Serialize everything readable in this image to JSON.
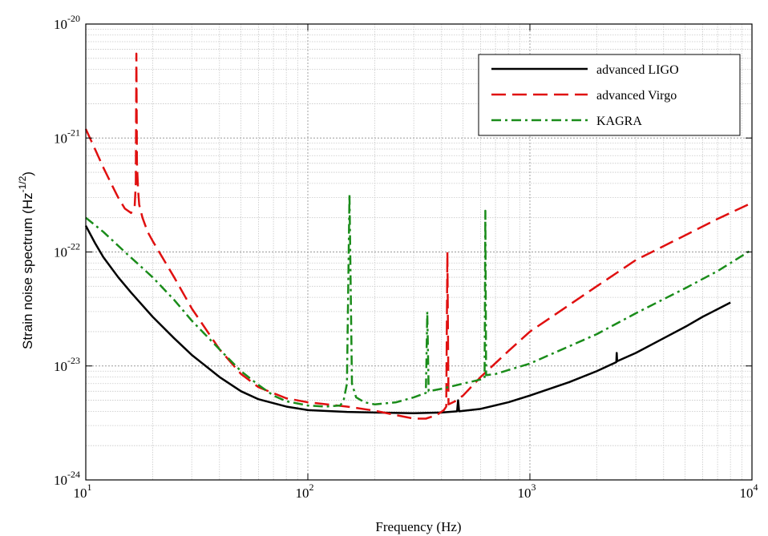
{
  "chart_data": {
    "type": "line",
    "title": "",
    "xlabel": "Frequency (Hz)",
    "ylabel": {
      "base": "Strain noise spectrum (Hz",
      "sup": "-1/2",
      "close": ")"
    },
    "xscale": "log",
    "yscale": "log",
    "xlim": [
      10,
      10000
    ],
    "ylim": [
      1e-24,
      1e-20
    ],
    "grid": true,
    "legend_position": "top-right",
    "x_ticks": [
      {
        "base": "10",
        "exp": "1",
        "value": 10
      },
      {
        "base": "10",
        "exp": "2",
        "value": 100
      },
      {
        "base": "10",
        "exp": "3",
        "value": 1000
      },
      {
        "base": "10",
        "exp": "4",
        "value": 10000
      }
    ],
    "y_ticks": [
      {
        "base": "10",
        "exp": "-24",
        "value": 1e-24
      },
      {
        "base": "10",
        "exp": "-23",
        "value": 1e-23
      },
      {
        "base": "10",
        "exp": "-22",
        "value": 1e-22
      },
      {
        "base": "10",
        "exp": "-21",
        "value": 1e-21
      },
      {
        "base": "10",
        "exp": "-20",
        "value": 1e-20
      }
    ],
    "series": [
      {
        "name": "advanced LIGO",
        "color": "#000000",
        "dash": "solid",
        "points": [
          [
            10,
            1.7e-22
          ],
          [
            11,
            1.2e-22
          ],
          [
            12,
            9e-23
          ],
          [
            14,
            6e-23
          ],
          [
            16,
            4.4e-23
          ],
          [
            20,
            2.7e-23
          ],
          [
            25,
            1.75e-23
          ],
          [
            30,
            1.25e-23
          ],
          [
            40,
            8e-24
          ],
          [
            50,
            6e-24
          ],
          [
            60,
            5.1e-24
          ],
          [
            80,
            4.4e-24
          ],
          [
            100,
            4.1e-24
          ],
          [
            150,
            3.95e-24
          ],
          [
            200,
            3.9e-24
          ],
          [
            300,
            3.85e-24
          ],
          [
            400,
            3.9e-24
          ],
          [
            470,
            4e-24
          ],
          [
            475,
            5e-24
          ],
          [
            480,
            4e-24
          ],
          [
            600,
            4.2e-24
          ],
          [
            800,
            4.8e-24
          ],
          [
            1000,
            5.5e-24
          ],
          [
            1500,
            7.2e-24
          ],
          [
            2000,
            9e-24
          ],
          [
            2450,
            1.08e-23
          ],
          [
            2460,
            1.3e-23
          ],
          [
            2470,
            1.1e-23
          ],
          [
            3000,
            1.3e-23
          ],
          [
            4000,
            1.75e-23
          ],
          [
            5000,
            2.2e-23
          ],
          [
            6000,
            2.7e-23
          ],
          [
            7000,
            3.15e-23
          ],
          [
            8000,
            3.6e-23
          ]
        ]
      },
      {
        "name": "advanced Virgo",
        "color": "#e01010",
        "dash": "long-dash",
        "points": [
          [
            10,
            1.2e-21
          ],
          [
            11,
            8e-22
          ],
          [
            12,
            5.5e-22
          ],
          [
            13,
            4e-22
          ],
          [
            14,
            3e-22
          ],
          [
            15,
            2.4e-22
          ],
          [
            16,
            2.2e-22
          ],
          [
            16.6,
            2.5e-22
          ],
          [
            16.8,
            4e-22
          ],
          [
            16.9,
            5.5e-21
          ],
          [
            17,
            6e-22
          ],
          [
            17.2,
            3.5e-22
          ],
          [
            17.4,
            2.6e-22
          ],
          [
            18,
            2e-22
          ],
          [
            19,
            1.5e-22
          ],
          [
            20,
            1.25e-22
          ],
          [
            25,
            6e-23
          ],
          [
            30,
            3.2e-23
          ],
          [
            40,
            1.4e-23
          ],
          [
            50,
            8.5e-24
          ],
          [
            60,
            6.5e-24
          ],
          [
            80,
            5.2e-24
          ],
          [
            100,
            4.8e-24
          ],
          [
            150,
            4.4e-24
          ],
          [
            200,
            4.05e-24
          ],
          [
            250,
            3.7e-24
          ],
          [
            300,
            3.45e-24
          ],
          [
            340,
            3.45e-24
          ],
          [
            380,
            3.7e-24
          ],
          [
            410,
            4.1e-24
          ],
          [
            420,
            4.4e-24
          ],
          [
            425,
            1e-22
          ],
          [
            430,
            4.6e-24
          ],
          [
            460,
            4.9e-24
          ],
          [
            500,
            5.5e-24
          ],
          [
            600,
            8e-24
          ],
          [
            800,
            1.35e-23
          ],
          [
            1000,
            2e-23
          ],
          [
            2000,
            5e-23
          ],
          [
            3000,
            8.5e-23
          ],
          [
            5000,
            1.4e-22
          ],
          [
            7000,
            1.95e-22
          ],
          [
            10000,
            2.7e-22
          ]
        ]
      },
      {
        "name": "KAGRA",
        "color": "#1a8c1a",
        "dash": "dash-dot",
        "points": [
          [
            10,
            2e-22
          ],
          [
            12,
            1.5e-22
          ],
          [
            15,
            1e-22
          ],
          [
            20,
            6e-23
          ],
          [
            25,
            3.8e-23
          ],
          [
            30,
            2.5e-23
          ],
          [
            40,
            1.4e-23
          ],
          [
            50,
            9e-24
          ],
          [
            60,
            6.8e-24
          ],
          [
            70,
            5.5e-24
          ],
          [
            80,
            4.9e-24
          ],
          [
            100,
            4.5e-24
          ],
          [
            120,
            4.4e-24
          ],
          [
            140,
            4.5e-24
          ],
          [
            145,
            5e-24
          ],
          [
            150,
            7e-24
          ],
          [
            154,
            3.2e-22
          ],
          [
            158,
            7e-24
          ],
          [
            165,
            5.3e-24
          ],
          [
            180,
            4.8e-24
          ],
          [
            200,
            4.6e-24
          ],
          [
            250,
            4.8e-24
          ],
          [
            300,
            5.3e-24
          ],
          [
            340,
            5.8e-24
          ],
          [
            345,
            3e-23
          ],
          [
            350,
            6e-24
          ],
          [
            400,
            6.3e-24
          ],
          [
            500,
            7e-24
          ],
          [
            600,
            7.6e-24
          ],
          [
            625,
            7.8e-24
          ],
          [
            630,
            2.3e-22
          ],
          [
            635,
            8.3e-24
          ],
          [
            700,
            8.5e-24
          ],
          [
            1000,
            1.05e-23
          ],
          [
            2000,
            1.9e-23
          ],
          [
            3000,
            2.9e-23
          ],
          [
            5000,
            4.8e-23
          ],
          [
            7000,
            6.8e-23
          ],
          [
            10000,
            1.05e-22
          ]
        ]
      }
    ]
  }
}
